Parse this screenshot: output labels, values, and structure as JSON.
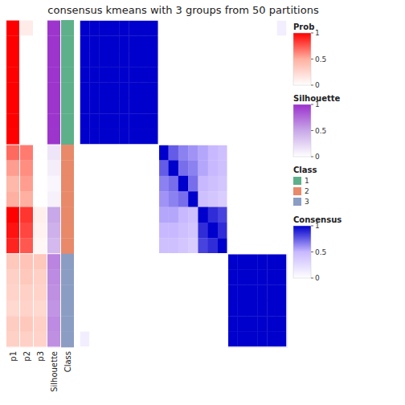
{
  "chart_data": {
    "type": "heatmap",
    "title": "consensus kmeans with 3 groups from 50 partitions",
    "cells": [
      [
        1.0,
        1.0,
        1.0,
        1.0,
        1.0,
        1.0,
        1.0,
        1.0,
        0.0,
        0.0,
        0.0,
        0.0,
        0.0,
        0.0,
        0.0,
        0.0,
        0.0,
        0.0,
        0.0,
        0.0,
        0.12
      ],
      [
        1.0,
        1.0,
        1.0,
        1.0,
        1.0,
        1.0,
        1.0,
        1.0,
        0.0,
        0.0,
        0.0,
        0.0,
        0.0,
        0.0,
        0.0,
        0.0,
        0.0,
        0.0,
        0.0,
        0.0,
        0.0
      ],
      [
        1.0,
        1.0,
        1.0,
        1.0,
        1.0,
        1.0,
        1.0,
        1.0,
        0.0,
        0.0,
        0.0,
        0.0,
        0.0,
        0.0,
        0.0,
        0.0,
        0.0,
        0.0,
        0.0,
        0.0,
        0.0
      ],
      [
        1.0,
        1.0,
        1.0,
        1.0,
        1.0,
        1.0,
        1.0,
        1.0,
        0.0,
        0.0,
        0.0,
        0.0,
        0.0,
        0.0,
        0.0,
        0.0,
        0.0,
        0.0,
        0.0,
        0.0,
        0.0
      ],
      [
        1.0,
        1.0,
        1.0,
        1.0,
        1.0,
        1.0,
        1.0,
        1.0,
        0.0,
        0.0,
        0.0,
        0.0,
        0.0,
        0.0,
        0.0,
        0.0,
        0.0,
        0.0,
        0.0,
        0.0,
        0.0
      ],
      [
        1.0,
        1.0,
        1.0,
        1.0,
        1.0,
        1.0,
        1.0,
        1.0,
        0.0,
        0.0,
        0.0,
        0.0,
        0.0,
        0.0,
        0.0,
        0.0,
        0.0,
        0.0,
        0.0,
        0.0,
        0.0
      ],
      [
        1.0,
        1.0,
        1.0,
        1.0,
        1.0,
        1.0,
        1.0,
        1.0,
        0.0,
        0.0,
        0.0,
        0.0,
        0.0,
        0.0,
        0.0,
        0.0,
        0.0,
        0.0,
        0.0,
        0.0,
        0.0
      ],
      [
        1.0,
        1.0,
        1.0,
        1.0,
        1.0,
        1.0,
        1.0,
        1.0,
        0.0,
        0.0,
        0.0,
        0.0,
        0.0,
        0.0,
        0.0,
        0.0,
        0.0,
        0.0,
        0.0,
        0.0,
        0.0
      ],
      [
        0.0,
        0.0,
        0.0,
        0.0,
        0.0,
        0.0,
        0.0,
        0.0,
        1.0,
        0.75,
        0.65,
        0.6,
        0.55,
        0.5,
        0.45,
        0.0,
        0.0,
        0.0,
        0.0,
        0.0,
        0.0
      ],
      [
        0.0,
        0.0,
        0.0,
        0.0,
        0.0,
        0.0,
        0.0,
        0.0,
        0.75,
        1.0,
        0.7,
        0.65,
        0.55,
        0.5,
        0.45,
        0.0,
        0.0,
        0.0,
        0.0,
        0.0,
        0.0
      ],
      [
        0.0,
        0.0,
        0.0,
        0.0,
        0.0,
        0.0,
        0.0,
        0.0,
        0.65,
        0.7,
        1.0,
        0.7,
        0.5,
        0.45,
        0.4,
        0.0,
        0.0,
        0.0,
        0.0,
        0.0,
        0.0
      ],
      [
        0.0,
        0.0,
        0.0,
        0.0,
        0.0,
        0.0,
        0.0,
        0.0,
        0.6,
        0.65,
        0.7,
        1.0,
        0.45,
        0.4,
        0.35,
        0.0,
        0.0,
        0.0,
        0.0,
        0.0,
        0.0
      ],
      [
        0.0,
        0.0,
        0.0,
        0.0,
        0.0,
        0.0,
        0.0,
        0.0,
        0.55,
        0.55,
        0.5,
        0.45,
        1.0,
        0.88,
        0.82,
        0.0,
        0.0,
        0.0,
        0.0,
        0.0,
        0.0
      ],
      [
        0.0,
        0.0,
        0.0,
        0.0,
        0.0,
        0.0,
        0.0,
        0.0,
        0.5,
        0.5,
        0.45,
        0.4,
        0.88,
        1.0,
        0.88,
        0.0,
        0.0,
        0.0,
        0.0,
        0.0,
        0.0
      ],
      [
        0.0,
        0.0,
        0.0,
        0.0,
        0.0,
        0.0,
        0.0,
        0.0,
        0.45,
        0.45,
        0.4,
        0.35,
        0.82,
        0.88,
        1.0,
        0.0,
        0.0,
        0.0,
        0.0,
        0.0,
        0.0
      ],
      [
        0.0,
        0.0,
        0.0,
        0.0,
        0.0,
        0.0,
        0.0,
        0.0,
        0.0,
        0.0,
        0.0,
        0.0,
        0.0,
        0.0,
        0.0,
        1.0,
        1.0,
        1.0,
        1.0,
        1.0,
        1.0
      ],
      [
        0.0,
        0.0,
        0.0,
        0.0,
        0.0,
        0.0,
        0.0,
        0.0,
        0.0,
        0.0,
        0.0,
        0.0,
        0.0,
        0.0,
        0.0,
        1.0,
        1.0,
        1.0,
        1.0,
        1.0,
        1.0
      ],
      [
        0.0,
        0.0,
        0.0,
        0.0,
        0.0,
        0.0,
        0.0,
        0.0,
        0.0,
        0.0,
        0.0,
        0.0,
        0.0,
        0.0,
        0.0,
        1.0,
        1.0,
        1.0,
        1.0,
        1.0,
        1.0
      ],
      [
        0.0,
        0.0,
        0.0,
        0.0,
        0.0,
        0.0,
        0.0,
        0.0,
        0.0,
        0.0,
        0.0,
        0.0,
        0.0,
        0.0,
        0.0,
        1.0,
        1.0,
        1.0,
        1.0,
        1.0,
        1.0
      ],
      [
        0.0,
        0.0,
        0.0,
        0.0,
        0.0,
        0.0,
        0.0,
        0.0,
        0.0,
        0.0,
        0.0,
        0.0,
        0.0,
        0.0,
        0.0,
        1.0,
        1.0,
        1.0,
        1.0,
        1.0,
        1.0
      ],
      [
        0.12,
        0.0,
        0.0,
        0.0,
        0.0,
        0.0,
        0.0,
        0.0,
        0.0,
        0.0,
        0.0,
        0.0,
        0.0,
        0.0,
        0.0,
        1.0,
        1.0,
        1.0,
        1.0,
        1.0,
        1.0
      ]
    ],
    "color_bar": {
      "title": "Consensus",
      "colors": [
        "white",
        "#C8B8FF",
        "#0000CC"
      ],
      "range": [
        0,
        1
      ],
      "ticks": [
        0,
        0.5,
        1
      ]
    },
    "group_boundaries": [
      0,
      8,
      15,
      21
    ],
    "annotation_columns": [
      {
        "title": "Prob",
        "colors": [
          "white",
          "#FFB0A0",
          "red"
        ],
        "range": [
          0,
          1
        ],
        "ticks": [
          0,
          0.5,
          1
        ],
        "series": [
          {
            "name": "p1",
            "values": [
              1.0,
              1.0,
              1.0,
              1.0,
              1.0,
              1.0,
              1.0,
              1.0,
              0.7,
              0.55,
              0.45,
              0.5,
              1.0,
              0.95,
              0.9,
              0.35,
              0.3,
              0.28,
              0.25,
              0.32,
              0.3
            ]
          },
          {
            "name": "p2",
            "values": [
              0.12,
              0.0,
              0.0,
              0.0,
              0.0,
              0.0,
              0.0,
              0.0,
              0.65,
              0.6,
              0.55,
              0.5,
              0.85,
              0.8,
              0.75,
              0.38,
              0.35,
              0.3,
              0.28,
              0.35,
              0.3
            ]
          },
          {
            "name": "p3",
            "values": [
              0.0,
              0.0,
              0.0,
              0.0,
              0.0,
              0.0,
              0.0,
              0.0,
              0.0,
              0.0,
              0.0,
              0.0,
              0.1,
              0.08,
              0.05,
              0.35,
              0.3,
              0.28,
              0.25,
              0.3,
              0.28
            ]
          }
        ]
      },
      {
        "title": "Silhouette",
        "colors": [
          "white",
          "#C8A8E8",
          "#9B30CC"
        ],
        "range": [
          0,
          1
        ],
        "ticks": [
          0,
          0.5,
          1
        ],
        "series": [
          {
            "name": "Silhouette",
            "values": [
              0.98,
              0.98,
              0.98,
              0.98,
              0.98,
              0.98,
              0.98,
              0.98,
              0.15,
              0.1,
              0.05,
              0.08,
              0.5,
              0.45,
              0.4,
              0.65,
              0.62,
              0.6,
              0.58,
              0.62,
              0.6
            ]
          }
        ]
      },
      {
        "title": "Class",
        "categories": [
          "1",
          "2",
          "3"
        ],
        "colors": [
          "#5DB08A",
          "#E8896A",
          "#8B9DC3"
        ],
        "series": [
          {
            "name": "Class",
            "values": [
              1,
              1,
              1,
              1,
              1,
              1,
              1,
              1,
              2,
              2,
              2,
              2,
              2,
              2,
              2,
              3,
              3,
              3,
              3,
              3,
              3
            ]
          }
        ]
      }
    ]
  }
}
